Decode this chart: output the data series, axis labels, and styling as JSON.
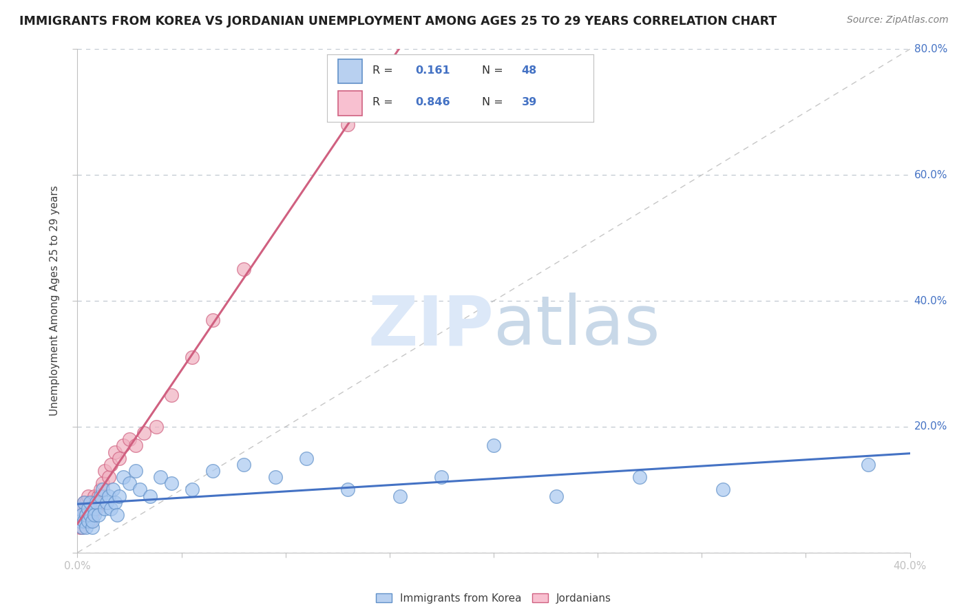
{
  "title": "IMMIGRANTS FROM KOREA VS JORDANIAN UNEMPLOYMENT AMONG AGES 25 TO 29 YEARS CORRELATION CHART",
  "source": "Source: ZipAtlas.com",
  "ylabel": "Unemployment Among Ages 25 to 29 years",
  "xlim": [
    0.0,
    0.4
  ],
  "ylim": [
    0.0,
    0.8
  ],
  "xticks": [
    0.0,
    0.05,
    0.1,
    0.15,
    0.2,
    0.25,
    0.3,
    0.35,
    0.4
  ],
  "yticks": [
    0.0,
    0.2,
    0.4,
    0.6,
    0.8
  ],
  "korea_R": 0.161,
  "korea_N": 48,
  "jordan_R": 0.846,
  "jordan_N": 39,
  "korea_color": "#a8c8f0",
  "jordan_color": "#f0b0c0",
  "korea_edge_color": "#6090c8",
  "jordan_edge_color": "#d06080",
  "korea_line_color": "#4472c4",
  "jordan_line_color": "#d06080",
  "ref_line_color": "#b8b8b8",
  "grid_color": "#c0c8d0",
  "axis_color": "#c0c0c0",
  "tick_label_color": "#4472c4",
  "title_color": "#202020",
  "legend_korea_fill": "#b8d0f0",
  "legend_jordan_fill": "#f8c0d0",
  "legend_korea_edge": "#6090c8",
  "legend_jordan_edge": "#d06080",
  "watermark_color": "#dce8f8",
  "source_color": "#808080",
  "korea_x": [
    0.001,
    0.001,
    0.002,
    0.002,
    0.003,
    0.003,
    0.004,
    0.004,
    0.005,
    0.005,
    0.006,
    0.006,
    0.007,
    0.007,
    0.008,
    0.008,
    0.009,
    0.01,
    0.011,
    0.012,
    0.013,
    0.014,
    0.015,
    0.016,
    0.017,
    0.018,
    0.019,
    0.02,
    0.022,
    0.025,
    0.028,
    0.03,
    0.035,
    0.04,
    0.045,
    0.055,
    0.065,
    0.08,
    0.095,
    0.11,
    0.13,
    0.155,
    0.175,
    0.2,
    0.23,
    0.27,
    0.31,
    0.38
  ],
  "korea_y": [
    0.05,
    0.07,
    0.04,
    0.06,
    0.05,
    0.08,
    0.04,
    0.06,
    0.07,
    0.05,
    0.08,
    0.06,
    0.04,
    0.05,
    0.07,
    0.06,
    0.08,
    0.06,
    0.09,
    0.1,
    0.07,
    0.08,
    0.09,
    0.07,
    0.1,
    0.08,
    0.06,
    0.09,
    0.12,
    0.11,
    0.13,
    0.1,
    0.09,
    0.12,
    0.11,
    0.1,
    0.13,
    0.14,
    0.12,
    0.15,
    0.1,
    0.09,
    0.12,
    0.17,
    0.09,
    0.12,
    0.1,
    0.14
  ],
  "jordan_x": [
    0.001,
    0.001,
    0.001,
    0.002,
    0.002,
    0.002,
    0.003,
    0.003,
    0.003,
    0.004,
    0.004,
    0.004,
    0.005,
    0.005,
    0.006,
    0.006,
    0.007,
    0.007,
    0.008,
    0.008,
    0.009,
    0.01,
    0.011,
    0.012,
    0.013,
    0.015,
    0.016,
    0.018,
    0.02,
    0.022,
    0.025,
    0.028,
    0.032,
    0.038,
    0.045,
    0.055,
    0.065,
    0.08,
    0.13
  ],
  "jordan_y": [
    0.04,
    0.06,
    0.05,
    0.04,
    0.07,
    0.06,
    0.05,
    0.08,
    0.06,
    0.05,
    0.07,
    0.08,
    0.06,
    0.09,
    0.05,
    0.07,
    0.08,
    0.06,
    0.09,
    0.08,
    0.07,
    0.09,
    0.1,
    0.11,
    0.13,
    0.12,
    0.14,
    0.16,
    0.15,
    0.17,
    0.18,
    0.17,
    0.19,
    0.2,
    0.25,
    0.31,
    0.37,
    0.45,
    0.68
  ]
}
